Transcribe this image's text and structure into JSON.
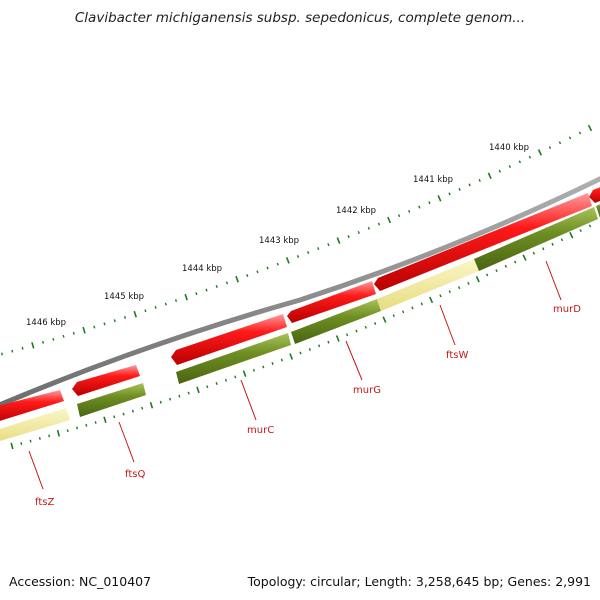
{
  "title": "Clavibacter michiganensis subsp. sepedonicus, complete genom...",
  "footer": {
    "accession": "Accession: NC_010407",
    "stats": "Topology: circular; Length: 3,258,645 bp; Genes: 2,991"
  },
  "colors": {
    "backbone": "#808080",
    "gene_red": "#ff1010",
    "cds_green": "#6e8e22",
    "cds_pale": "#f2ea96",
    "ticks": "#1e7a1e",
    "label_red": "#c41818"
  },
  "ruler": [
    "1446 kbp",
    "1445 kbp",
    "1444 kbp",
    "1443 kbp",
    "1442 kbp",
    "1441 kbp",
    "1440 kbp"
  ],
  "genes": [
    "ftsZ",
    "ftsQ",
    "murC",
    "murG",
    "ftsW",
    "murD"
  ]
}
